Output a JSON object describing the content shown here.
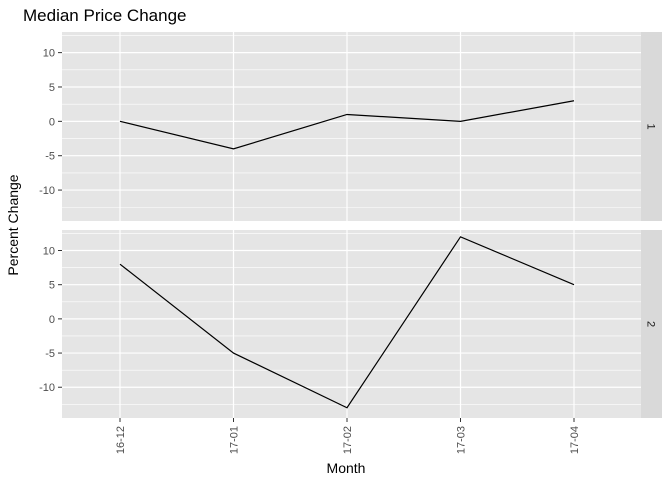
{
  "chart_data": {
    "type": "line",
    "title": "Median Price Change",
    "xlabel": "Month",
    "ylabel": "Percent Change",
    "categories": [
      "16-12",
      "17-01",
      "17-02",
      "17-03",
      "17-04"
    ],
    "ylim": [
      -14.5,
      13
    ],
    "yticks": [
      -10,
      -5,
      0,
      5,
      10
    ],
    "grid": true,
    "panel_background": "#e5e5e5",
    "grid_color": "#ffffff",
    "strip_background": "#d9d9d9",
    "line_color": "#000000",
    "facets": [
      {
        "strip_label": "1",
        "values": [
          0,
          -4,
          1,
          0,
          3
        ]
      },
      {
        "strip_label": "2",
        "values": [
          8,
          -5,
          -13,
          12,
          5
        ]
      }
    ]
  }
}
